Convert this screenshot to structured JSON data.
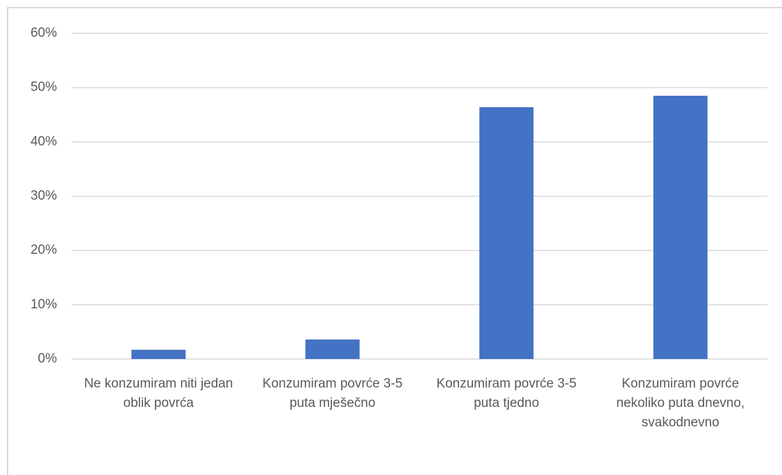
{
  "chart_data": {
    "type": "bar",
    "categories": [
      "Ne konzumiram niti jedan oblik povrća",
      "Konzumiram povrće 3-5 puta mješečno",
      "Konzumiram povrće 3-5 puta tjedno",
      "Konzumiram povrće nekoliko puta dnevno, svakodnevno"
    ],
    "values": [
      1.7,
      3.6,
      46.4,
      48.5
    ],
    "color": "#4472c4",
    "ylim": [
      0,
      60
    ],
    "yticks": [
      {
        "value": 0,
        "label": "0%"
      },
      {
        "value": 10,
        "label": "10%"
      },
      {
        "value": 20,
        "label": "20%"
      },
      {
        "value": 30,
        "label": "30%"
      },
      {
        "value": 40,
        "label": "40%"
      },
      {
        "value": 50,
        "label": "50%"
      },
      {
        "value": 60,
        "label": "60%"
      }
    ],
    "grid": true
  }
}
